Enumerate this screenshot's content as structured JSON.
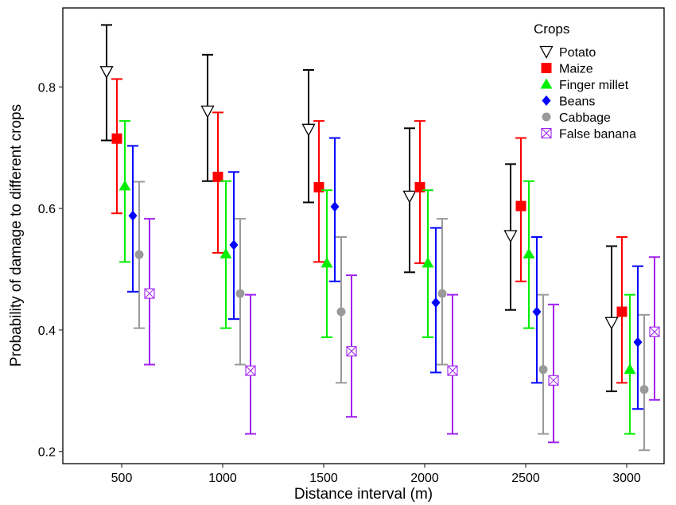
{
  "chart_data": {
    "type": "scatter",
    "subtype": "point-with-error-bars",
    "title": "",
    "xlabel": "Distance interval (m)",
    "ylabel": "Probability of damage to different crops",
    "categories": [
      "500",
      "1000",
      "1500",
      "2000",
      "2500",
      "3000"
    ],
    "ylim": [
      0.18,
      0.93
    ],
    "yticks": [
      "0.2",
      "0.4",
      "0.6",
      "0.8"
    ],
    "grid": false,
    "legend": {
      "title": "Crops",
      "position": "top-right"
    },
    "series": [
      {
        "name": "Potato",
        "color": "#000000",
        "marker": "triangle-down-open",
        "values": [
          0.825,
          0.76,
          0.73,
          0.62,
          0.555,
          0.412
        ],
        "lower": [
          0.712,
          0.645,
          0.61,
          0.495,
          0.433,
          0.299
        ],
        "upper": [
          0.902,
          0.853,
          0.828,
          0.732,
          0.673,
          0.538
        ]
      },
      {
        "name": "Maize",
        "color": "#ff0000",
        "marker": "square",
        "values": [
          0.715,
          0.652,
          0.635,
          0.635,
          0.604,
          0.43
        ],
        "lower": [
          0.592,
          0.527,
          0.512,
          0.51,
          0.48,
          0.313
        ],
        "upper": [
          0.813,
          0.758,
          0.744,
          0.744,
          0.716,
          0.553
        ]
      },
      {
        "name": "Finger millet",
        "color": "#00ee00",
        "marker": "triangle-up",
        "values": [
          0.637,
          0.525,
          0.51,
          0.51,
          0.525,
          0.335
        ],
        "lower": [
          0.512,
          0.403,
          0.388,
          0.388,
          0.403,
          0.229
        ],
        "upper": [
          0.744,
          0.645,
          0.63,
          0.63,
          0.645,
          0.458
        ]
      },
      {
        "name": "Beans",
        "color": "#0000ff",
        "marker": "diamond",
        "values": [
          0.588,
          0.54,
          0.603,
          0.445,
          0.43,
          0.38
        ],
        "lower": [
          0.463,
          0.418,
          0.48,
          0.33,
          0.313,
          0.27
        ],
        "upper": [
          0.703,
          0.66,
          0.716,
          0.568,
          0.553,
          0.505
        ]
      },
      {
        "name": "Cabbage",
        "color": "#999999",
        "marker": "circle",
        "values": [
          0.524,
          0.46,
          0.43,
          0.46,
          0.335,
          0.302
        ],
        "lower": [
          0.403,
          0.343,
          0.313,
          0.343,
          0.229,
          0.202
        ],
        "upper": [
          0.644,
          0.583,
          0.553,
          0.583,
          0.458,
          0.425
        ]
      },
      {
        "name": "False banana",
        "color": "#a020f0",
        "marker": "square-cross-open",
        "values": [
          0.46,
          0.333,
          0.365,
          0.333,
          0.317,
          0.397
        ],
        "lower": [
          0.343,
          0.229,
          0.257,
          0.229,
          0.215,
          0.285
        ],
        "upper": [
          0.583,
          0.458,
          0.49,
          0.458,
          0.442,
          0.52
        ]
      }
    ]
  }
}
